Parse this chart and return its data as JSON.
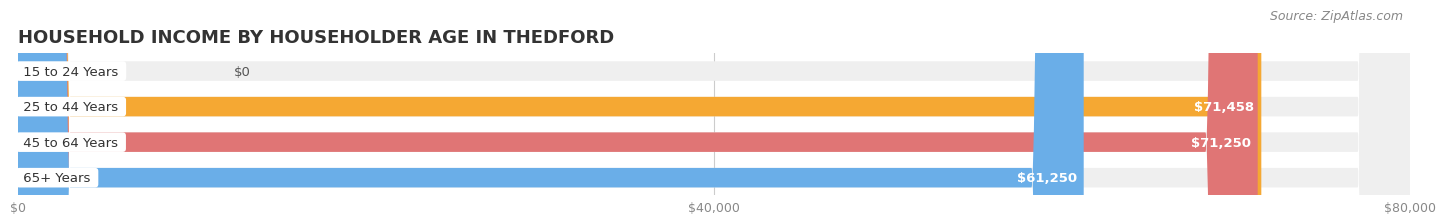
{
  "title": "HOUSEHOLD INCOME BY HOUSEHOLDER AGE IN THEDFORD",
  "source": "Source: ZipAtlas.com",
  "categories": [
    "15 to 24 Years",
    "25 to 44 Years",
    "45 to 64 Years",
    "65+ Years"
  ],
  "values": [
    0,
    71458,
    71250,
    61250
  ],
  "bar_colors": [
    "#f2a0b5",
    "#f5a833",
    "#e07575",
    "#6aaee8"
  ],
  "bar_bg_color": "#efefef",
  "background_color": "#ffffff",
  "xlim": [
    0,
    80000
  ],
  "xticks": [
    0,
    40000,
    80000
  ],
  "xtick_labels": [
    "$0",
    "$40,000",
    "$80,000"
  ],
  "value_labels": [
    "$0",
    "$71,458",
    "$71,250",
    "$61,250"
  ],
  "title_fontsize": 13,
  "source_fontsize": 9,
  "label_fontsize": 9.5,
  "bar_label_fontsize": 9.5,
  "bar_height": 0.55,
  "bar_gap": 0.18
}
